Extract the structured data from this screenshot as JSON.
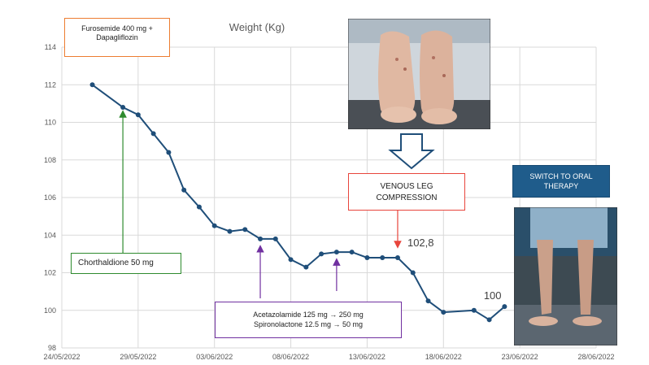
{
  "chart_data": {
    "type": "line",
    "title": "Weight (Kg)",
    "xlabel": "",
    "ylabel": "",
    "ylim": [
      98,
      114
    ],
    "yticks": [
      98,
      100,
      102,
      104,
      106,
      108,
      110,
      112,
      114
    ],
    "xlim": [
      "2022-05-24",
      "2022-06-28"
    ],
    "xticks": [
      "24/05/2022",
      "29/05/2022",
      "03/06/2022",
      "08/06/2022",
      "13/06/2022",
      "18/06/2022",
      "23/06/2022",
      "28/06/2022"
    ],
    "xtick_dates": [
      "2022-05-24",
      "2022-05-29",
      "2022-06-03",
      "2022-06-08",
      "2022-06-13",
      "2022-06-18",
      "2022-06-23",
      "2022-06-28"
    ],
    "grid": true,
    "series": [
      {
        "color": "#1f4e79",
        "points": [
          {
            "x": "2022-05-26",
            "y": 112.0
          },
          {
            "x": "2022-05-28",
            "y": 110.8
          },
          {
            "x": "2022-05-29",
            "y": 110.4
          },
          {
            "x": "2022-05-30",
            "y": 109.4
          },
          {
            "x": "2022-05-31",
            "y": 108.4
          },
          {
            "x": "2022-06-01",
            "y": 106.4
          },
          {
            "x": "2022-06-02",
            "y": 105.5
          },
          {
            "x": "2022-06-03",
            "y": 104.5
          },
          {
            "x": "2022-06-04",
            "y": 104.2
          },
          {
            "x": "2022-06-05",
            "y": 104.3
          },
          {
            "x": "2022-06-06",
            "y": 103.8
          },
          {
            "x": "2022-06-07",
            "y": 103.8
          },
          {
            "x": "2022-06-08",
            "y": 102.7
          },
          {
            "x": "2022-06-09",
            "y": 102.3
          },
          {
            "x": "2022-06-10",
            "y": 103.0
          },
          {
            "x": "2022-06-11",
            "y": 103.1
          },
          {
            "x": "2022-06-12",
            "y": 103.1
          },
          {
            "x": "2022-06-13",
            "y": 102.8
          },
          {
            "x": "2022-06-14",
            "y": 102.8
          },
          {
            "x": "2022-06-15",
            "y": 102.8
          },
          {
            "x": "2022-06-16",
            "y": 102.0
          },
          {
            "x": "2022-06-17",
            "y": 100.5
          },
          {
            "x": "2022-06-18",
            "y": 99.9
          },
          {
            "x": "2022-06-20",
            "y": 100.0
          },
          {
            "x": "2022-06-21",
            "y": 99.5
          },
          {
            "x": "2022-06-22",
            "y": 100.2
          }
        ]
      }
    ],
    "data_labels": [
      {
        "text": "102,8",
        "x": "2022-06-15",
        "y": 102.8
      },
      {
        "text": "100",
        "x": "2022-06-20",
        "y": 100.0
      }
    ]
  },
  "annotations": {
    "furosemide": {
      "line1": "Furosemide 400 mg +",
      "line2": "Dapagliflozin",
      "color": "#ed7d31"
    },
    "chorthaldione": {
      "text": "Chorthaldione 50 mg",
      "color": "#2e8b2e"
    },
    "acetazolamide": {
      "line1": "Acetazolamide 125 mg → 250 mg",
      "line2": "Spironolactone  12.5 mg → 50 mg",
      "color": "#7030a0"
    },
    "compression": {
      "line1": "VENOUS LEG",
      "line2": "COMPRESSION",
      "color": "#e8453c"
    },
    "oral": {
      "line1": "SWITCH TO ORAL",
      "line2": "THERAPY",
      "color": "#1f5c8b"
    }
  }
}
